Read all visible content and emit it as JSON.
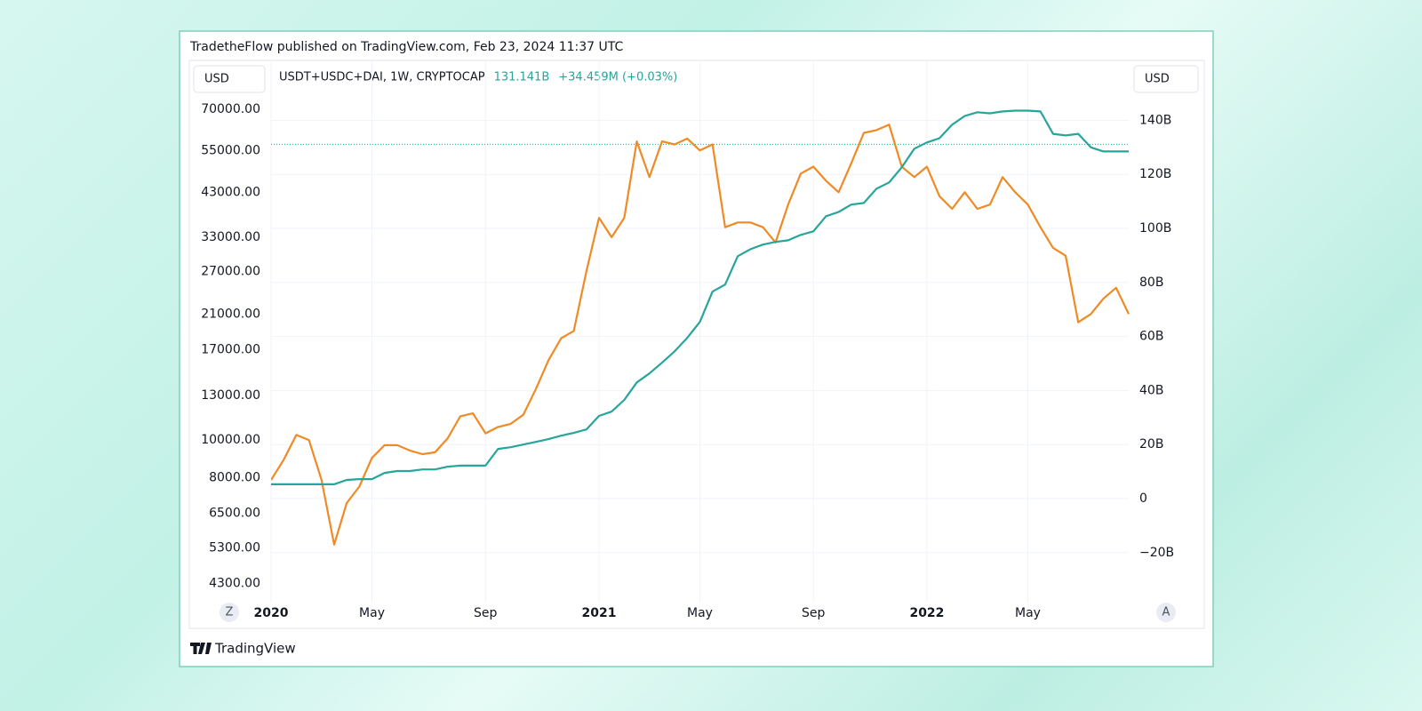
{
  "header": {
    "published": "TradetheFlow published on TradingView.com, Feb 23, 2024 11:37 UTC",
    "left_unit": "USD",
    "right_unit": "USD",
    "left_button": "Z",
    "right_button": "A",
    "brand": "TradingView"
  },
  "chart_data": {
    "type": "line",
    "yscale": "log",
    "grid": true,
    "legend": {
      "change": "+34.459M (+0.03%)",
      "last_value": {
        "value": 131141000000,
        "label": "131.141B"
      }
    },
    "categories": [
      "2020",
      null,
      null,
      null,
      null,
      null,
      null,
      null,
      "May",
      null,
      null,
      null,
      null,
      null,
      null,
      null,
      null,
      "Sep",
      null,
      null,
      null,
      null,
      null,
      null,
      null,
      null,
      "2021",
      null,
      null,
      null,
      null,
      null,
      null,
      null,
      "May",
      null,
      null,
      null,
      null,
      null,
      null,
      null,
      null,
      "Sep",
      null,
      null,
      null,
      null,
      null,
      null,
      null,
      null,
      "2022",
      null,
      null,
      null,
      null,
      null,
      null,
      null,
      "May",
      null,
      null,
      null,
      null,
      null,
      null,
      null,
      null
    ],
    "series": [
      {
        "color": "#f08a24",
        "axis": "y",
        "values": [
          7900,
          8900,
          10300,
          10000,
          7900,
          5400,
          6900,
          7600,
          9000,
          9700,
          9700,
          9400,
          9200,
          9300,
          10100,
          11500,
          11700,
          10400,
          10800,
          11000,
          11600,
          13500,
          16000,
          18200,
          19000,
          27000,
          37000,
          33000,
          37000,
          58000,
          47000,
          58000,
          57000,
          59000,
          55000,
          57000,
          35000,
          36000,
          36000,
          35000,
          32000,
          40000,
          48000,
          50000,
          46000,
          43000,
          51000,
          61000,
          62000,
          64000,
          50000,
          47000,
          50000,
          42000,
          39000,
          43000,
          39000,
          40000,
          47000,
          43000,
          40000,
          35000,
          31000,
          29600,
          20000,
          21000,
          23000,
          24500,
          21000
        ]
      },
      {
        "name": "USDT+USDC+DAI, 1W, CRYPTOCAP",
        "color": "#26a69a",
        "axis": "y2",
        "values": [
          5300000000.0,
          5300000000.0,
          5300000000.0,
          5300000000.0,
          5300000000.0,
          5300000000.0,
          6900000000.0,
          7200000000.0,
          7200000000.0,
          9500000000.0,
          10200000000.0,
          10200000000.0,
          10800000000.0,
          10800000000.0,
          11800000000.0,
          12200000000.0,
          12200000000.0,
          12200000000.0,
          18400000000.0,
          19000000000.0,
          20000000000.0,
          21000000000.0,
          22000000000.0,
          23300000000.0,
          24300000000.0,
          25600000000.0,
          30600000000.0,
          32200000000.0,
          36500000000.0,
          43000000000.0,
          46300000000.0,
          50300000000.0,
          54500000000.0,
          59500000000.0,
          65400000000.0,
          76600000000.0,
          79200000000.0,
          89700000000.0,
          92300000000.0,
          94000000000.0,
          95000000000.0,
          95600000000.0,
          97600000000.0,
          98900000000.0,
          104500000000.0,
          106100000000.0,
          108800000000.0,
          109400000000.0,
          114700000000.0,
          117000000000.0,
          122600000000.0,
          129500000000.0,
          131800000000.0,
          133400000000.0,
          138400000000.0,
          141600000000.0,
          143000000000.0,
          142600000000.0,
          143300000000.0,
          143600000000.0,
          143600000000.0,
          143300000000.0,
          135000000000.0,
          134400000000.0,
          135000000000.0,
          130000000000.0,
          128500000000.0,
          128500000000.0,
          128500000000.0
        ]
      }
    ],
    "ylim": [
      3900,
      77000
    ],
    "yticks": [
      {
        "value": 70000,
        "label": "70000.00"
      },
      {
        "value": 55000,
        "label": "55000.00"
      },
      {
        "value": 43000,
        "label": "43000.00"
      },
      {
        "value": 33000,
        "label": "33000.00"
      },
      {
        "value": 27000,
        "label": "27000.00"
      },
      {
        "value": 21000,
        "label": "21000.00"
      },
      {
        "value": 17000,
        "label": "17000.00"
      },
      {
        "value": 13000,
        "label": "13000.00"
      },
      {
        "value": 10000,
        "label": "10000.00"
      },
      {
        "value": 8000,
        "label": "8000.00"
      },
      {
        "value": 6500,
        "label": "6500.00"
      },
      {
        "value": 5300,
        "label": "5300.00"
      },
      {
        "value": 4300,
        "label": "4300.00"
      }
    ],
    "y2lim": [
      -37500000000,
      150000000000
    ],
    "y2ticks": [
      {
        "value": 140000000000,
        "label": "140B"
      },
      {
        "value": 120000000000,
        "label": "120B"
      },
      {
        "value": 100000000000,
        "label": "100B"
      },
      {
        "value": 80000000000,
        "label": "80B"
      },
      {
        "value": 60000000000,
        "label": "60B"
      },
      {
        "value": 40000000000,
        "label": "40B"
      },
      {
        "value": 20000000000,
        "label": "20B"
      },
      0,
      {
        "value": -20000000000,
        "label": "−20B"
      }
    ]
  }
}
